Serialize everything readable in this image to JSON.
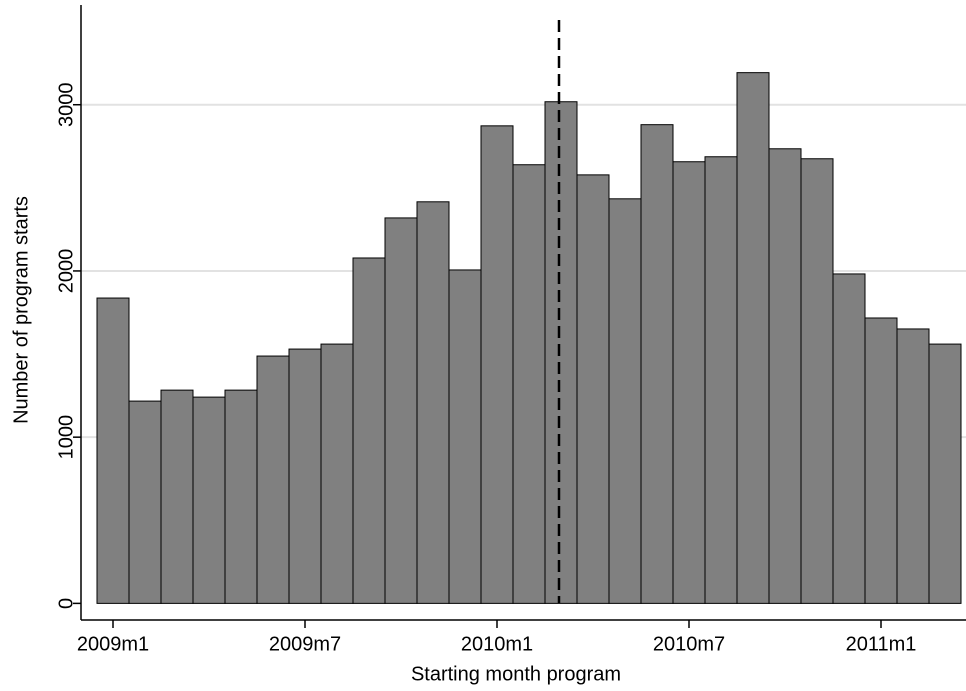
{
  "chart_data": {
    "type": "bar",
    "x_label": "Starting month program",
    "y_label": "Number of program starts",
    "categories": [
      "2009m1",
      null,
      null,
      null,
      null,
      null,
      "2009m7",
      null,
      null,
      null,
      null,
      null,
      "2010m1",
      null,
      null,
      null,
      null,
      null,
      "2010m7",
      null,
      null,
      null,
      null,
      null,
      "2011m1",
      null,
      null
    ],
    "values": [
      1837,
      1217,
      1283,
      1241,
      1283,
      1488,
      1530,
      1560,
      2078,
      2319,
      2416,
      2006,
      2873,
      2639,
      3018,
      2578,
      2434,
      2880,
      2657,
      2687,
      3193,
      2735,
      2675,
      1982,
      1717,
      1651,
      1560
    ],
    "color": "#808080",
    "ylim": [
      -100,
      3600
    ],
    "yticks": [
      0,
      1000,
      2000,
      3000
    ],
    "grid": true,
    "vline": {
      "category_index": 14,
      "style": "dashed"
    }
  }
}
